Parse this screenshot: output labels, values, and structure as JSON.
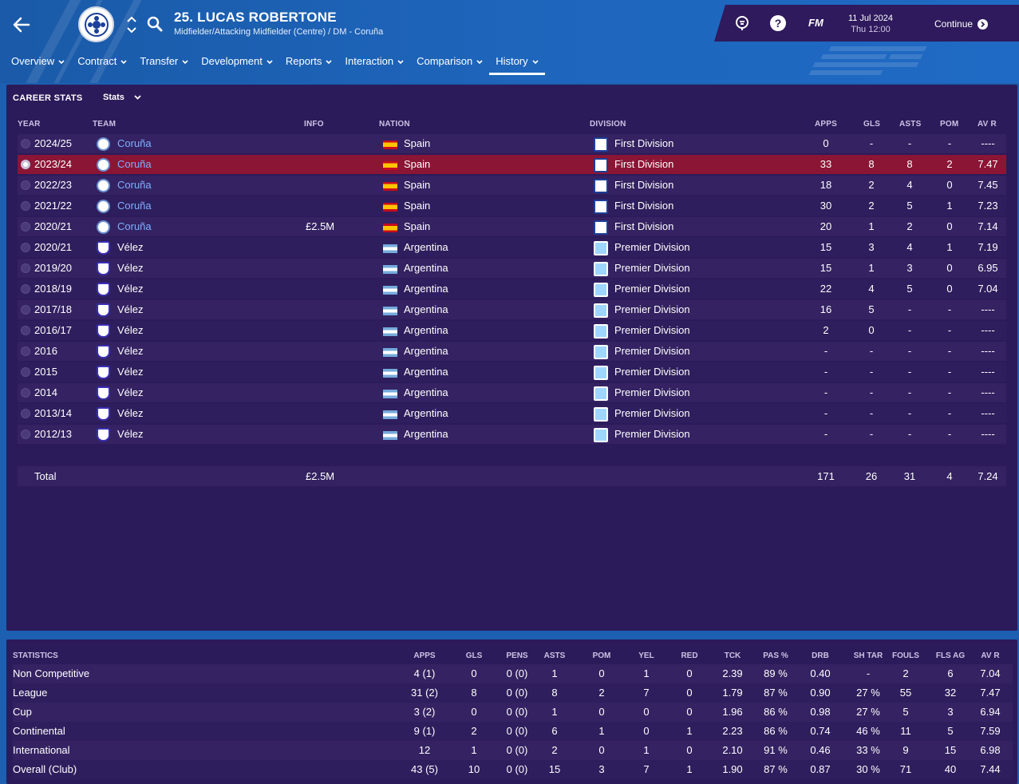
{
  "player": {
    "name": "25. LUCAS ROBERTONE",
    "position": "Midfielder/Attacking Midfielder (Centre) / DM - Coruña"
  },
  "header": {
    "fm_label": "FM",
    "date": "11 Jul 2024",
    "day_time": "Thu 12:00",
    "continue_label": "Continue"
  },
  "nav": {
    "items": [
      {
        "label": "Overview"
      },
      {
        "label": "Contract"
      },
      {
        "label": "Transfer"
      },
      {
        "label": "Development"
      },
      {
        "label": "Reports"
      },
      {
        "label": "Interaction"
      },
      {
        "label": "Comparison"
      },
      {
        "label": "History"
      }
    ],
    "active": "History"
  },
  "career": {
    "title": "CAREER STATS",
    "dropdown": "Stats",
    "headers": [
      "YEAR",
      "TEAM",
      "INFO",
      "NATION",
      "DIVISION",
      "APPS",
      "GLS",
      "ASTS",
      "POM",
      "AV R"
    ],
    "rows": [
      {
        "year": "2024/25",
        "team": "Coruña",
        "info": "",
        "nation": "Spain",
        "division": "First Division",
        "apps": "0",
        "gls": "-",
        "asts": "-",
        "pom": "-",
        "avr": "----"
      },
      {
        "year": "2023/24",
        "team": "Coruña",
        "info": "",
        "nation": "Spain",
        "division": "First Division",
        "apps": "33",
        "gls": "8",
        "asts": "8",
        "pom": "2",
        "avr": "7.47"
      },
      {
        "year": "2022/23",
        "team": "Coruña",
        "info": "",
        "nation": "Spain",
        "division": "First Division",
        "apps": "18",
        "gls": "2",
        "asts": "4",
        "pom": "0",
        "avr": "7.45"
      },
      {
        "year": "2021/22",
        "team": "Coruña",
        "info": "",
        "nation": "Spain",
        "division": "First Division",
        "apps": "30",
        "gls": "2",
        "asts": "5",
        "pom": "1",
        "avr": "7.23"
      },
      {
        "year": "2020/21",
        "team": "Coruña",
        "info": "£2.5M",
        "nation": "Spain",
        "division": "First Division",
        "apps": "20",
        "gls": "1",
        "asts": "2",
        "pom": "0",
        "avr": "7.14"
      },
      {
        "year": "2020/21",
        "team": "Vélez",
        "info": "",
        "nation": "Argentina",
        "division": "Premier Division",
        "apps": "15",
        "gls": "3",
        "asts": "4",
        "pom": "1",
        "avr": "7.19"
      },
      {
        "year": "2019/20",
        "team": "Vélez",
        "info": "",
        "nation": "Argentina",
        "division": "Premier Division",
        "apps": "15",
        "gls": "1",
        "asts": "3",
        "pom": "0",
        "avr": "6.95"
      },
      {
        "year": "2018/19",
        "team": "Vélez",
        "info": "",
        "nation": "Argentina",
        "division": "Premier Division",
        "apps": "22",
        "gls": "4",
        "asts": "5",
        "pom": "0",
        "avr": "7.04"
      },
      {
        "year": "2017/18",
        "team": "Vélez",
        "info": "",
        "nation": "Argentina",
        "division": "Premier Division",
        "apps": "16",
        "gls": "5",
        "asts": "-",
        "pom": "-",
        "avr": "----"
      },
      {
        "year": "2016/17",
        "team": "Vélez",
        "info": "",
        "nation": "Argentina",
        "division": "Premier Division",
        "apps": "2",
        "gls": "0",
        "asts": "-",
        "pom": "-",
        "avr": "----"
      },
      {
        "year": "2016",
        "team": "Vélez",
        "info": "",
        "nation": "Argentina",
        "division": "Premier Division",
        "apps": "-",
        "gls": "-",
        "asts": "-",
        "pom": "-",
        "avr": "----"
      },
      {
        "year": "2015",
        "team": "Vélez",
        "info": "",
        "nation": "Argentina",
        "division": "Premier Division",
        "apps": "-",
        "gls": "-",
        "asts": "-",
        "pom": "-",
        "avr": "----"
      },
      {
        "year": "2014",
        "team": "Vélez",
        "info": "",
        "nation": "Argentina",
        "division": "Premier Division",
        "apps": "-",
        "gls": "-",
        "asts": "-",
        "pom": "-",
        "avr": "----"
      },
      {
        "year": "2013/14",
        "team": "Vélez",
        "info": "",
        "nation": "Argentina",
        "division": "Premier Division",
        "apps": "-",
        "gls": "-",
        "asts": "-",
        "pom": "-",
        "avr": "----"
      },
      {
        "year": "2012/13",
        "team": "Vélez",
        "info": "",
        "nation": "Argentina",
        "division": "Premier Division",
        "apps": "-",
        "gls": "-",
        "asts": "-",
        "pom": "-",
        "avr": "----"
      }
    ],
    "selected_index": 1,
    "total": {
      "label": "Total",
      "info": "£2.5M",
      "apps": "171",
      "gls": "26",
      "asts": "31",
      "pom": "4",
      "avr": "7.24"
    }
  },
  "statistics": {
    "headers": [
      "STATISTICS",
      "APPS",
      "GLS",
      "PENS",
      "ASTS",
      "POM",
      "YEL",
      "RED",
      "TCK",
      "PAS %",
      "DRB",
      "SH TAR",
      "FOULS",
      "FLS AG",
      "AV R"
    ],
    "rows": [
      {
        "name": "Non Competitive",
        "apps": "4 (1)",
        "gls": "0",
        "pens": "0 (0)",
        "asts": "1",
        "pom": "0",
        "yel": "1",
        "red": "0",
        "tck": "2.39",
        "pas": "89 %",
        "drb": "0.40",
        "shtar": "-",
        "fouls": "2",
        "flsag": "6",
        "avr": "7.04"
      },
      {
        "name": "League",
        "apps": "31 (2)",
        "gls": "8",
        "pens": "0 (0)",
        "asts": "8",
        "pom": "2",
        "yel": "7",
        "red": "0",
        "tck": "1.79",
        "pas": "87 %",
        "drb": "0.90",
        "shtar": "27 %",
        "fouls": "55",
        "flsag": "32",
        "avr": "7.47"
      },
      {
        "name": "Cup",
        "apps": "3 (2)",
        "gls": "0",
        "pens": "0 (0)",
        "asts": "1",
        "pom": "0",
        "yel": "0",
        "red": "0",
        "tck": "1.96",
        "pas": "86 %",
        "drb": "0.98",
        "shtar": "27 %",
        "fouls": "5",
        "flsag": "3",
        "avr": "6.94"
      },
      {
        "name": "Continental",
        "apps": "9 (1)",
        "gls": "2",
        "pens": "0 (0)",
        "asts": "6",
        "pom": "1",
        "yel": "0",
        "red": "1",
        "tck": "2.23",
        "pas": "86 %",
        "drb": "0.74",
        "shtar": "46 %",
        "fouls": "11",
        "flsag": "5",
        "avr": "7.59"
      },
      {
        "name": "International",
        "apps": "12",
        "gls": "1",
        "pens": "0 (0)",
        "asts": "2",
        "pom": "0",
        "yel": "1",
        "red": "0",
        "tck": "2.10",
        "pas": "91 %",
        "drb": "0.46",
        "shtar": "33 %",
        "fouls": "9",
        "flsag": "15",
        "avr": "6.98"
      },
      {
        "name": "Overall (Club)",
        "apps": "43 (5)",
        "gls": "10",
        "pens": "0 (0)",
        "asts": "15",
        "pom": "3",
        "yel": "7",
        "red": "1",
        "tck": "1.90",
        "pas": "87 %",
        "drb": "0.87",
        "shtar": "30 %",
        "fouls": "71",
        "flsag": "40",
        "avr": "7.44"
      }
    ]
  },
  "colors": {
    "background": "#1d5fb0",
    "panel": "#2c1b5a",
    "selected_row": "#8b1535",
    "link": "#7fb0ff"
  }
}
